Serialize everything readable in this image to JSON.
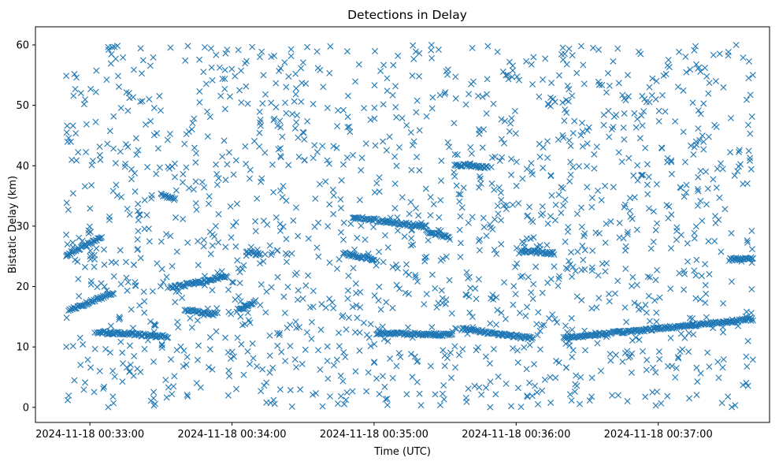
{
  "chart_data": {
    "type": "scatter",
    "title": "Detections in Delay",
    "xlabel": "Time (UTC)",
    "ylabel": "Bistatic Delay (km)",
    "xlim": [
      "2024-11-18 00:32:37",
      "2024-11-18 00:37:47"
    ],
    "ylim": [
      -2.5,
      63
    ],
    "xticks": [
      "2024-11-18 00:33:00",
      "2024-11-18 00:34:00",
      "2024-11-18 00:35:00",
      "2024-11-18 00:36:00",
      "2024-11-18 00:37:00"
    ],
    "yticks": [
      0,
      10,
      20,
      30,
      40,
      50,
      60
    ],
    "grid": false,
    "marker": "x",
    "color": "#1f77b4",
    "x_range": [
      "2024-11-18 00:32:50",
      "2024-11-18 00:37:40"
    ],
    "tracks": [
      {
        "x": [
          "2024-11-18 00:32:50",
          "2024-11-18 00:33:05"
        ],
        "y": [
          25.2,
          28.2
        ]
      },
      {
        "x": [
          "2024-11-18 00:32:51",
          "2024-11-18 00:33:10"
        ],
        "y": [
          16.0,
          19.0
        ]
      },
      {
        "x": [
          "2024-11-18 00:33:03",
          "2024-11-18 00:33:33"
        ],
        "y": [
          12.5,
          11.7
        ]
      },
      {
        "x": [
          "2024-11-18 00:33:30",
          "2024-11-18 00:33:36"
        ],
        "y": [
          35.2,
          34.5
        ]
      },
      {
        "x": [
          "2024-11-18 00:33:34",
          "2024-11-18 00:33:58"
        ],
        "y": [
          19.8,
          21.7
        ]
      },
      {
        "x": [
          "2024-11-18 00:33:40",
          "2024-11-18 00:33:53"
        ],
        "y": [
          16.2,
          15.4
        ]
      },
      {
        "x": [
          "2024-11-18 00:34:02",
          "2024-11-18 00:34:10"
        ],
        "y": [
          16.0,
          17.5
        ]
      },
      {
        "x": [
          "2024-11-18 00:34:06",
          "2024-11-18 00:34:12"
        ],
        "y": [
          25.8,
          25.2
        ]
      },
      {
        "x": [
          "2024-11-18 00:34:47",
          "2024-11-18 00:35:00"
        ],
        "y": [
          25.5,
          24.5
        ]
      },
      {
        "x": [
          "2024-11-18 00:34:51",
          "2024-11-18 00:35:22"
        ],
        "y": [
          31.5,
          29.9
        ]
      },
      {
        "x": [
          "2024-11-18 00:35:22",
          "2024-11-18 00:35:32"
        ],
        "y": [
          29.2,
          28.0
        ]
      },
      {
        "x": [
          "2024-11-18 00:35:01",
          "2024-11-18 00:35:33"
        ],
        "y": [
          12.3,
          12.0
        ]
      },
      {
        "x": [
          "2024-11-18 00:35:34",
          "2024-11-18 00:35:48"
        ],
        "y": [
          40.2,
          39.8
        ]
      },
      {
        "x": [
          "2024-11-18 00:35:37",
          "2024-11-18 00:36:07"
        ],
        "y": [
          13.0,
          11.4
        ]
      },
      {
        "x": [
          "2024-11-18 00:36:02",
          "2024-11-18 00:36:16"
        ],
        "y": [
          25.9,
          25.5
        ]
      },
      {
        "x": [
          "2024-11-18 00:36:20",
          "2024-11-18 00:37:40"
        ],
        "y": [
          11.5,
          14.6
        ]
      },
      {
        "x": [
          "2024-11-18 00:37:30",
          "2024-11-18 00:37:40"
        ],
        "y": [
          24.5,
          24.7
        ]
      }
    ],
    "scatter_points": 1600,
    "scatter_y_range": [
      0,
      60
    ],
    "scatter_seed": 7
  }
}
